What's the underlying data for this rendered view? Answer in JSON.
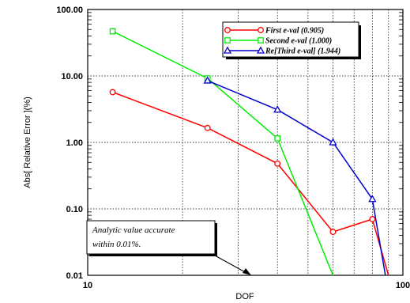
{
  "chart_data": {
    "type": "line",
    "xlabel": "DOF",
    "ylabel": "Abs[ Relative Error ](%)",
    "x_scale": "log",
    "y_scale": "log",
    "xlim": [
      10,
      100
    ],
    "ylim": [
      0.01,
      100
    ],
    "grid": true,
    "legend_position": "top-right",
    "x_tick_labels": [
      "10",
      "100"
    ],
    "y_tick_labels": [
      "0.01",
      "0.10",
      "1.00",
      "10.00",
      "100.00"
    ],
    "series": [
      {
        "name": "First e-val (0.905)",
        "color": "#ff0000",
        "marker": "circle",
        "x": [
          12,
          24,
          40,
          60,
          80,
          90
        ],
        "y": [
          5.7,
          1.65,
          0.48,
          0.045,
          0.07,
          0.01
        ]
      },
      {
        "name": "Second e-val (1.000)",
        "color": "#00ee00",
        "marker": "square",
        "x": [
          12,
          24,
          40,
          60
        ],
        "y": [
          47,
          9.2,
          1.15,
          0.01
        ]
      },
      {
        "name": "Re[Third e-val] (1.944)",
        "color": "#0000cc",
        "marker": "triangle",
        "x": [
          24,
          40,
          60,
          80,
          88
        ],
        "y": [
          8.5,
          3.1,
          1.0,
          0.14,
          0.01
        ]
      }
    ],
    "annotation": {
      "lines": [
        "Analytic value accurate",
        "within 0.01%."
      ],
      "arrow_target": {
        "x": 38,
        "y": 0.01
      }
    }
  }
}
